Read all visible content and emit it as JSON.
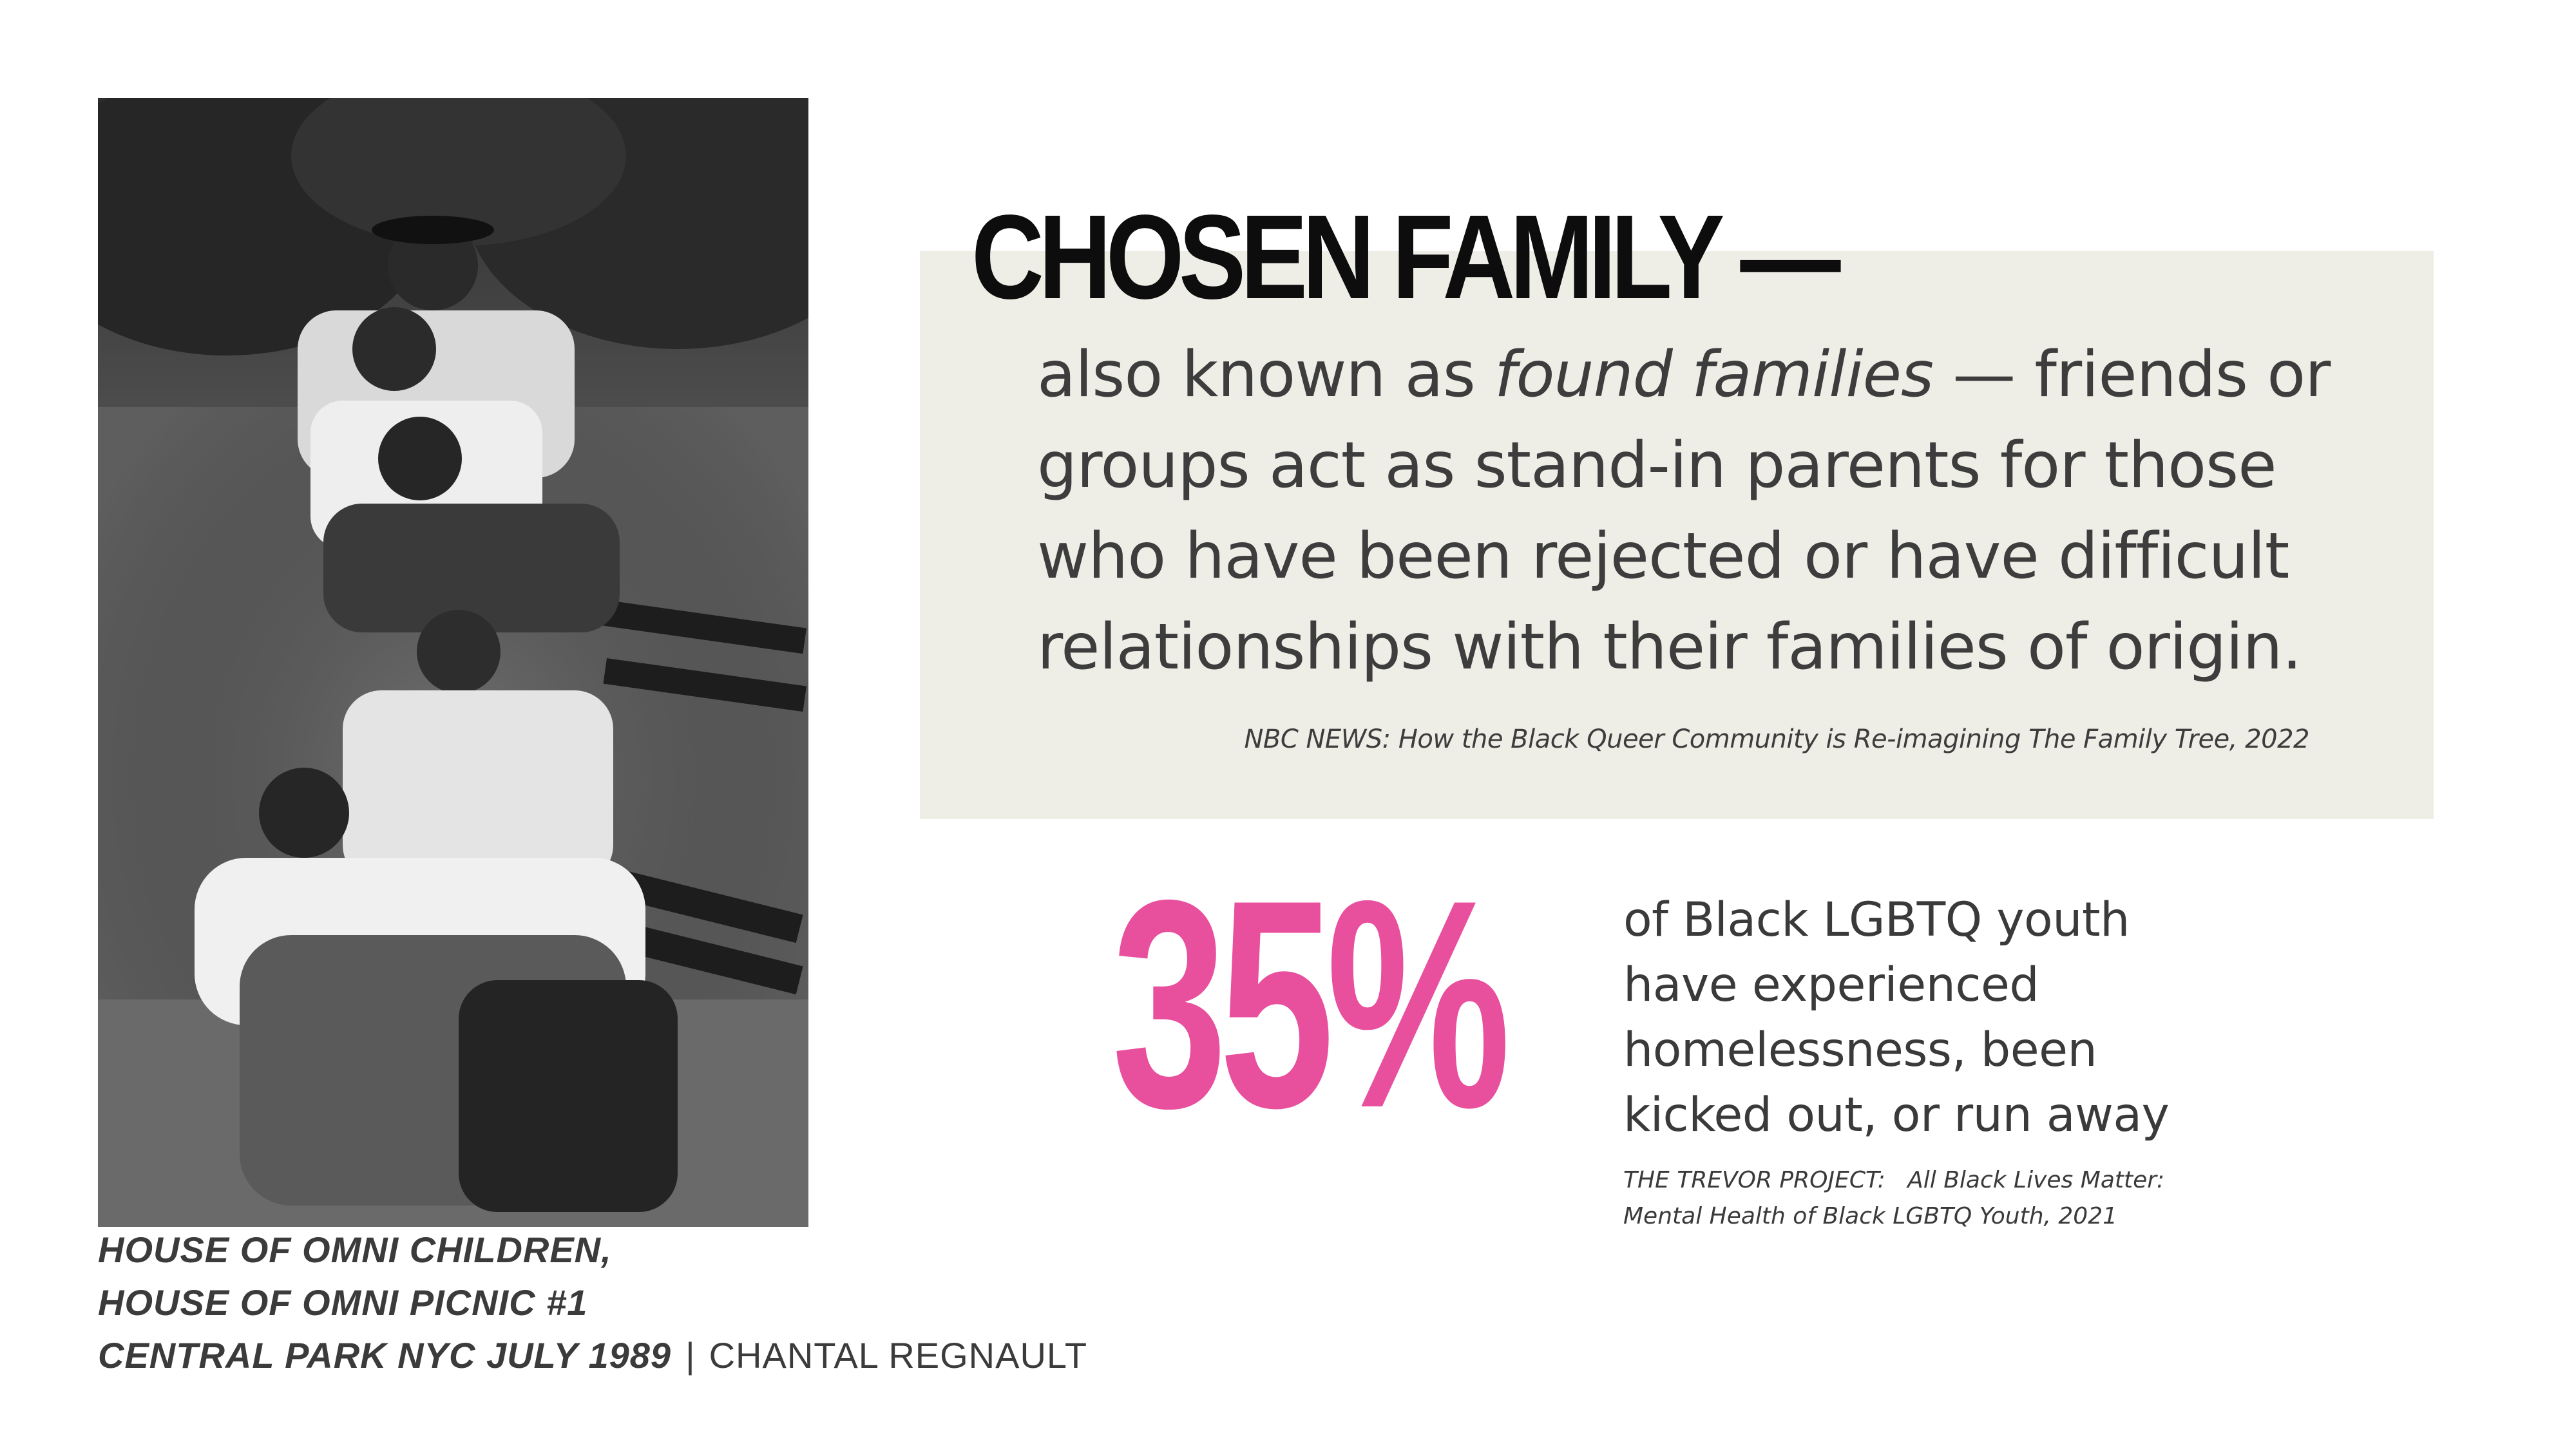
{
  "photo": {
    "alt": "Black and white photograph of five young men posed together on and around a park bench",
    "icon": "photo-image"
  },
  "caption": {
    "line1": "HOUSE OF OMNI CHILDREN,",
    "line2": "HOUSE OF OMNI PICNIC #1",
    "line3": "CENTRAL PARK NYC  JULY 1989",
    "separator": "|",
    "credit": "CHANTAL REGNAULT"
  },
  "definition": {
    "title": "CHOSEN FAMILY —",
    "text_before": " also known as ",
    "term": "found families",
    "text_after": " — friends or groups act as stand-in parents for those who have been rejected or have difficult relationships with their families of origin.",
    "source": "NBC NEWS: How the Black Queer Community is Re-imagining The Family Tree, 2022"
  },
  "stat": {
    "number": "35%",
    "line1": "of Black LGBTQ youth",
    "line2": "have experienced",
    "line3": "homelessness, been",
    "line4": "kicked out, or run away",
    "source_line1": "THE TREVOR PROJECT:   All Black Lives Matter:",
    "source_line2": "Mental Health of Black LGBTQ Youth, 2021"
  },
  "colors": {
    "accent_pink": "#e8509e",
    "box_background": "#eeede6",
    "title_black": "#0d0d0d",
    "body_text": "#3a3a3a"
  }
}
